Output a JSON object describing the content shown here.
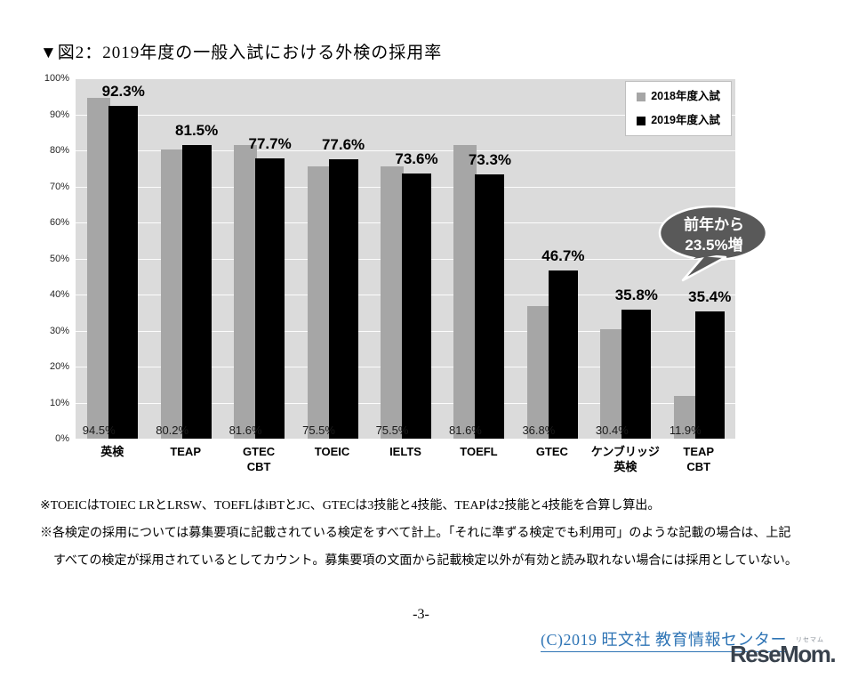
{
  "page": {
    "title": "▼図2：2019年度の一般入試における外検の採用率",
    "page_number": "-3-",
    "copyright_link": "(C)2019 旺文社 教育情報センター",
    "logo_text": "ReseMom.",
    "logo_ruby": "リセマム",
    "footnotes": [
      "※TOEICはTOIEC LRとLRSW、TOEFLはiBTとJC、GTECは3技能と4技能、TEAPは2技能と4技能を合算し算出。",
      "※各検定の採用については募集要項に記載されている検定をすべて計上。「それに準ずる検定でも利用可」のような記載の場合は、上記",
      "すべての検定が採用されているとしてカウント。募集要項の文面から記載検定以外が有効と読み取れない場合には採用としていない。"
    ]
  },
  "chart_data": {
    "type": "bar",
    "title": "2019年度の一般入試における外検の採用率",
    "categories": [
      "英検",
      "TEAP",
      "GTEC CBT",
      "TOEIC",
      "IELTS",
      "TOEFL",
      "GTEC",
      "ケンブリッジ英検",
      "TEAP CBT"
    ],
    "category_label_lines": [
      [
        "英検"
      ],
      [
        "TEAP"
      ],
      [
        "GTEC",
        "CBT"
      ],
      [
        "TOEIC"
      ],
      [
        "IELTS"
      ],
      [
        "TOEFL"
      ],
      [
        "GTEC"
      ],
      [
        "ケンブリッジ",
        "英検"
      ],
      [
        "TEAP",
        "CBT"
      ]
    ],
    "series": [
      {
        "name": "2018年度入試",
        "color": "#A6A6A6",
        "values": [
          94.5,
          80.2,
          81.6,
          75.5,
          75.5,
          81.6,
          36.8,
          30.4,
          11.9
        ]
      },
      {
        "name": "2019年度入試",
        "color": "#000000",
        "values": [
          92.3,
          81.5,
          77.7,
          77.6,
          73.6,
          73.3,
          46.7,
          35.8,
          35.4
        ]
      }
    ],
    "data_labels_2018": [
      "94.5%",
      "80.2%",
      "81.6%",
      "75.5%",
      "75.5%",
      "81.6%",
      "36.8%",
      "30.4%",
      "11.9%"
    ],
    "data_labels_2019": [
      "92.3%",
      "81.5%",
      "77.7%",
      "77.6%",
      "73.6%",
      "73.3%",
      "46.7%",
      "35.8%",
      "35.4%"
    ],
    "xlabel": "",
    "ylabel": "",
    "ylim": [
      0,
      100
    ],
    "y_ticks": [
      "0%",
      "10%",
      "20%",
      "30%",
      "40%",
      "50%",
      "60%",
      "70%",
      "80%",
      "90%",
      "100%"
    ],
    "grid": true,
    "plot_background": "#DBDBDB",
    "gridline_color": "#FFFFFF",
    "legend_position": "top-right",
    "annotation": {
      "lines": [
        "前年から",
        "23.5%増"
      ],
      "target_category": "TEAP CBT",
      "bubble_color": "#595959",
      "text_color": "#FFFFFF"
    }
  },
  "colors": {
    "link_blue": "#2E74B5",
    "logo_dark": "#39424D",
    "bar_2018": "#A6A6A6",
    "bar_2019": "#000000"
  }
}
